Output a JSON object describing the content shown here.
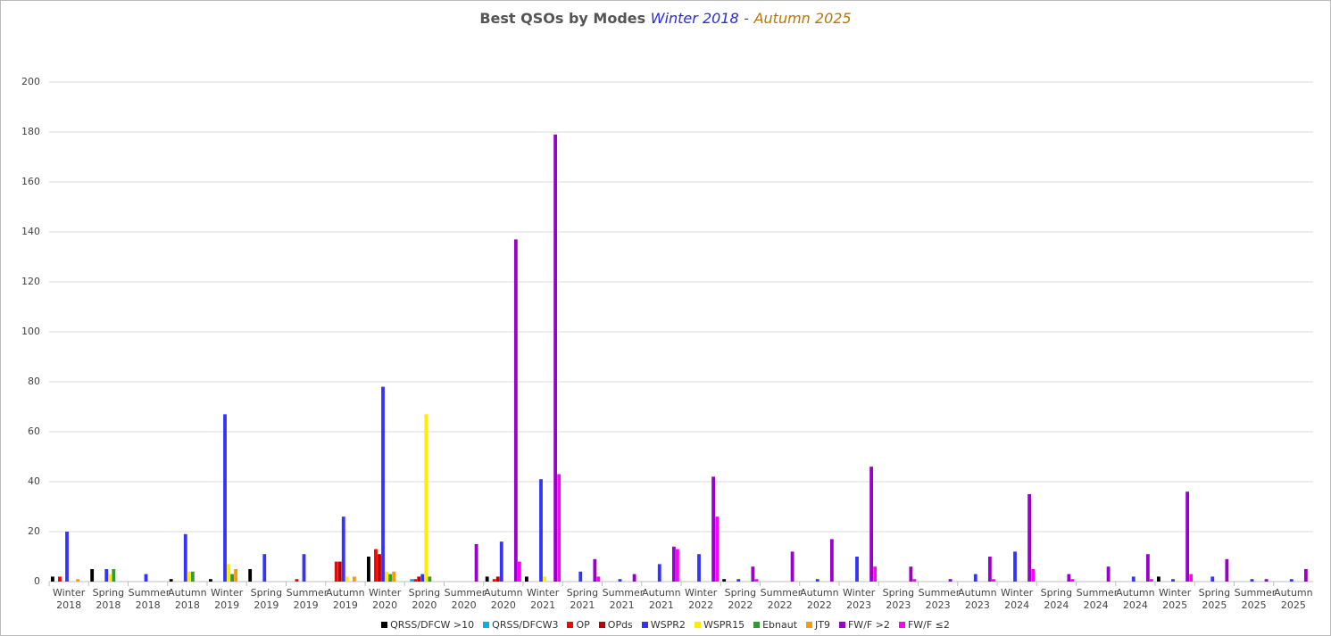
{
  "chart_data": {
    "type": "bar",
    "title": {
      "text": "Best QSOs by Modes",
      "from": "Winter 2018",
      "separator": "-",
      "to": "Autumn 2025",
      "from_color": "#2a2ae0",
      "to_color": "#b87800"
    },
    "categories": [
      "Winter 2018",
      "Spring 2018",
      "Summer 2018",
      "Autumn 2018",
      "Winter 2019",
      "Spring 2019",
      "Summer 2019",
      "Autumn 2019",
      "Winter 2020",
      "Spring 2020",
      "Summer 2020",
      "Autumn 2020",
      "Winter 2021",
      "Spring 2021",
      "Summer 2021",
      "Autumn 2021",
      "Winter 2022",
      "Spring 2022",
      "Summer 2022",
      "Autumn 2022",
      "Winter 2023",
      "Spring 2023",
      "Summer 2023",
      "Autumn 2023",
      "Winter 2024",
      "Spring 2024",
      "Summer 2024",
      "Autumn 2024",
      "Winter 2025",
      "Spring 2025",
      "Summer 2025",
      "Autumn 2025"
    ],
    "series": [
      {
        "name": "QRSS/DFCW >10",
        "color": "#000000",
        "values": [
          2,
          5,
          0,
          1,
          1,
          5,
          0,
          0,
          10,
          0,
          0,
          2,
          2,
          0,
          0,
          0,
          0,
          1,
          0,
          0,
          0,
          0,
          0,
          0,
          0,
          0,
          0,
          0,
          2,
          0,
          0,
          0
        ]
      },
      {
        "name": "QRSS/DFCW3",
        "color": "#00b0f0",
        "values": [
          0,
          0,
          0,
          0,
          0,
          0,
          0,
          0,
          0,
          1,
          0,
          0,
          0,
          0,
          0,
          0,
          0,
          0,
          0,
          0,
          0,
          0,
          0,
          0,
          0,
          0,
          0,
          0,
          0,
          0,
          0,
          0
        ]
      },
      {
        "name": "OP",
        "color": "#ff0000",
        "values": [
          2,
          0,
          0,
          0,
          0,
          0,
          1,
          8,
          13,
          1,
          0,
          1,
          0,
          0,
          0,
          0,
          0,
          0,
          0,
          0,
          0,
          0,
          0,
          0,
          0,
          0,
          0,
          0,
          0,
          0,
          0,
          0
        ]
      },
      {
        "name": "OPds",
        "color": "#c00000",
        "values": [
          0,
          0,
          0,
          0,
          0,
          0,
          0,
          8,
          11,
          2,
          0,
          2,
          0,
          0,
          0,
          0,
          0,
          0,
          0,
          0,
          0,
          0,
          0,
          0,
          0,
          0,
          0,
          0,
          0,
          0,
          0,
          0
        ]
      },
      {
        "name": "WSPR2",
        "color": "#3333ff",
        "values": [
          20,
          5,
          3,
          19,
          67,
          11,
          11,
          26,
          78,
          3,
          0,
          16,
          41,
          4,
          1,
          7,
          11,
          1,
          0,
          1,
          10,
          0,
          0,
          3,
          12,
          0,
          0,
          2,
          1,
          2,
          1,
          1
        ]
      },
      {
        "name": "WSPR15",
        "color": "#ffee00",
        "values": [
          0,
          3,
          0,
          4,
          7,
          0,
          0,
          2,
          4,
          67,
          0,
          0,
          2,
          0,
          0,
          0,
          0,
          0,
          0,
          0,
          0,
          0,
          0,
          0,
          0,
          0,
          0,
          0,
          0,
          0,
          0,
          0
        ]
      },
      {
        "name": "Ebnaut",
        "color": "#339933",
        "values": [
          0,
          5,
          0,
          4,
          3,
          0,
          0,
          0,
          3,
          2,
          0,
          0,
          0,
          0,
          0,
          0,
          0,
          0,
          0,
          0,
          0,
          0,
          0,
          0,
          0,
          0,
          0,
          0,
          0,
          0,
          0,
          0
        ]
      },
      {
        "name": "JT9",
        "color": "#ff9900",
        "values": [
          1,
          0,
          0,
          0,
          5,
          0,
          0,
          2,
          4,
          0,
          0,
          0,
          0,
          0,
          0,
          0,
          0,
          0,
          0,
          0,
          0,
          0,
          0,
          0,
          0,
          0,
          0,
          0,
          0,
          0,
          0,
          0
        ]
      },
      {
        "name": "FW/F >2",
        "color": "#9900cc",
        "values": [
          0,
          0,
          0,
          0,
          0,
          0,
          0,
          0,
          0,
          0,
          15,
          137,
          179,
          9,
          3,
          14,
          42,
          6,
          12,
          17,
          46,
          6,
          1,
          10,
          35,
          3,
          6,
          11,
          36,
          9,
          1,
          5
        ]
      },
      {
        "name": "FW/F ≤2",
        "color": "#ff00ff",
        "values": [
          0,
          0,
          0,
          0,
          0,
          0,
          0,
          0,
          0,
          0,
          0,
          8,
          43,
          2,
          0,
          13,
          26,
          1,
          0,
          0,
          6,
          1,
          0,
          1,
          5,
          1,
          0,
          1,
          3,
          0,
          0,
          0
        ]
      }
    ],
    "ylim": [
      0,
      200
    ],
    "yticks": [
      0,
      20,
      40,
      60,
      80,
      100,
      120,
      140,
      160,
      180,
      200
    ],
    "grid": true
  }
}
